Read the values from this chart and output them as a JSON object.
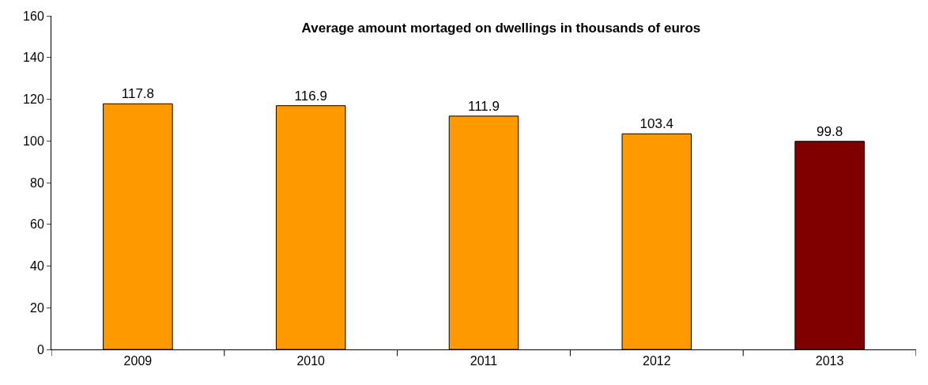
{
  "chart_data": {
    "type": "bar",
    "title": "Average amount mortaged on dwellings in thousands of euros",
    "categories": [
      "2009",
      "2010",
      "2011",
      "2012",
      "2013"
    ],
    "values": [
      117.8,
      116.9,
      111.9,
      103.4,
      99.8
    ],
    "colors": [
      "#ff9900",
      "#ff9900",
      "#ff9900",
      "#ff9900",
      "#800000"
    ],
    "ylim": [
      0,
      160
    ],
    "yticks": [
      0,
      20,
      40,
      60,
      80,
      100,
      120,
      140,
      160
    ],
    "data_labels": true
  }
}
